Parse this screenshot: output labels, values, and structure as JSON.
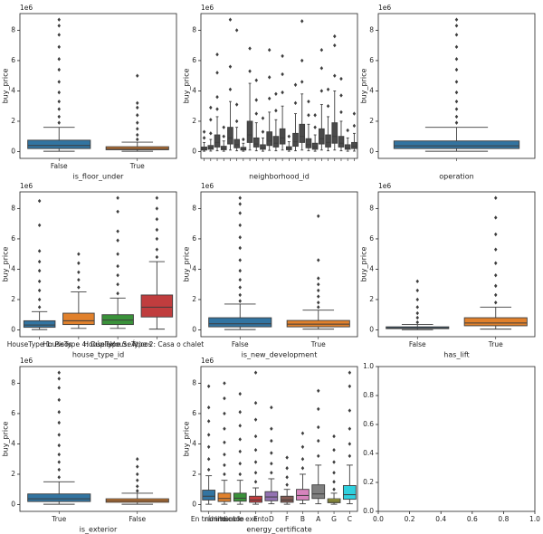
{
  "chart_data": [
    {
      "type": "box",
      "xlabel": "is_floor_under",
      "ylabel": "buy_price",
      "offset_text": "1e6",
      "ylim": [
        -0.45,
        9.1
      ],
      "yticks": [
        0,
        2,
        4,
        6,
        8
      ],
      "categories": [
        "False",
        "True"
      ],
      "colors": [
        "#3274a1",
        "#e1812c"
      ],
      "boxes": [
        {
          "low": 0.02,
          "q1": 0.2,
          "median": 0.4,
          "q3": 0.75,
          "high": 1.6,
          "fliers": [
            1.9,
            2.3,
            2.8,
            3.3,
            3.9,
            4.6,
            5.4,
            6.1,
            6.9,
            7.7,
            8.3,
            8.7
          ]
        },
        {
          "low": 0.02,
          "q1": 0.12,
          "median": 0.2,
          "q3": 0.32,
          "high": 0.62,
          "fliers": [
            0.8,
            1.1,
            1.5,
            1.9,
            2.4,
            2.9,
            3.2,
            5.0
          ]
        }
      ]
    },
    {
      "type": "box",
      "xlabel": "neighborhood_id",
      "ylabel": "buy_price",
      "offset_text": "1e6",
      "ylim": [
        -0.45,
        9.1
      ],
      "yticks": [
        0,
        2,
        4,
        6,
        8
      ],
      "categories": [
        null,
        null,
        null,
        null,
        null,
        null,
        null,
        null,
        null,
        null,
        null,
        null,
        null,
        null,
        null,
        null,
        null,
        null,
        null,
        null,
        null,
        null,
        null,
        null
      ],
      "color": "#4a4a4a",
      "boxes": [
        {
          "low": 0.02,
          "q1": 0.1,
          "median": 0.18,
          "q3": 0.3,
          "high": 0.6,
          "fliers": [
            0.9,
            1.3
          ]
        },
        {
          "low": 0.03,
          "q1": 0.15,
          "median": 0.25,
          "q3": 0.4,
          "high": 0.8,
          "fliers": [
            1.2,
            2.1,
            2.9
          ]
        },
        {
          "low": 0.05,
          "q1": 0.3,
          "median": 0.6,
          "q3": 1.1,
          "high": 2.3,
          "fliers": [
            2.8,
            3.6,
            5.2,
            6.4
          ]
        },
        {
          "low": 0.02,
          "q1": 0.12,
          "median": 0.2,
          "q3": 0.35,
          "high": 0.7,
          "fliers": [
            1.0,
            1.6
          ]
        },
        {
          "low": 0.1,
          "q1": 0.5,
          "median": 0.9,
          "q3": 1.6,
          "high": 3.3,
          "fliers": [
            4.1,
            5.6,
            8.7
          ]
        },
        {
          "low": 0.05,
          "q1": 0.25,
          "median": 0.45,
          "q3": 0.8,
          "high": 1.6,
          "fliers": [
            2.0,
            3.1,
            8.0
          ]
        },
        {
          "low": 0.02,
          "q1": 0.1,
          "median": 0.17,
          "q3": 0.28,
          "high": 0.55,
          "fliers": [
            0.8
          ]
        },
        {
          "low": 0.1,
          "q1": 0.6,
          "median": 1.1,
          "q3": 2.0,
          "high": 4.5,
          "fliers": [
            5.3,
            6.8
          ]
        },
        {
          "low": 0.05,
          "q1": 0.3,
          "median": 0.5,
          "q3": 0.9,
          "high": 1.9,
          "fliers": [
            2.5,
            3.4,
            4.7
          ]
        },
        {
          "low": 0.02,
          "q1": 0.15,
          "median": 0.25,
          "q3": 0.45,
          "high": 0.9,
          "fliers": [
            1.3,
            2.2
          ]
        },
        {
          "low": 0.08,
          "q1": 0.4,
          "median": 0.7,
          "q3": 1.3,
          "high": 2.6,
          "fliers": [
            3.5,
            4.9,
            6.7
          ]
        },
        {
          "low": 0.05,
          "q1": 0.3,
          "median": 0.55,
          "q3": 1.0,
          "high": 2.1,
          "fliers": [
            2.7,
            3.8
          ]
        },
        {
          "low": 0.1,
          "q1": 0.5,
          "median": 0.9,
          "q3": 1.5,
          "high": 3.0,
          "fliers": [
            3.9,
            5.1,
            6.3
          ]
        },
        {
          "low": 0.02,
          "q1": 0.12,
          "median": 0.2,
          "q3": 0.32,
          "high": 0.65,
          "fliers": [
            1.0
          ]
        },
        {
          "low": 0.05,
          "q1": 0.35,
          "median": 0.65,
          "q3": 1.2,
          "high": 2.5,
          "fliers": [
            3.2,
            4.4
          ]
        },
        {
          "low": 0.1,
          "q1": 0.6,
          "median": 1.0,
          "q3": 1.8,
          "high": 3.8,
          "fliers": [
            4.6,
            6.0,
            8.6
          ]
        },
        {
          "low": 0.05,
          "q1": 0.25,
          "median": 0.45,
          "q3": 0.85,
          "high": 1.8,
          "fliers": [
            2.4,
            3.3
          ]
        },
        {
          "low": 0.02,
          "q1": 0.15,
          "median": 0.3,
          "q3": 0.55,
          "high": 1.1,
          "fliers": [
            1.6,
            2.4
          ]
        },
        {
          "low": 0.1,
          "q1": 0.5,
          "median": 0.85,
          "q3": 1.5,
          "high": 3.1,
          "fliers": [
            4.0,
            5.5,
            6.7
          ]
        },
        {
          "low": 0.05,
          "q1": 0.3,
          "median": 0.6,
          "q3": 1.1,
          "high": 2.3,
          "fliers": [
            3.0,
            4.1
          ]
        },
        {
          "low": 0.1,
          "q1": 0.55,
          "median": 1.0,
          "q3": 1.9,
          "high": 4.0,
          "fliers": [
            5.0,
            7.0,
            7.6
          ]
        },
        {
          "low": 0.05,
          "q1": 0.3,
          "median": 0.55,
          "q3": 1.0,
          "high": 2.0,
          "fliers": [
            2.6,
            3.7,
            4.8
          ]
        },
        {
          "low": 0.02,
          "q1": 0.15,
          "median": 0.25,
          "q3": 0.45,
          "high": 0.9,
          "fliers": [
            1.4
          ]
        },
        {
          "low": 0.03,
          "q1": 0.2,
          "median": 0.35,
          "q3": 0.6,
          "high": 1.2,
          "fliers": [
            1.7,
            2.5
          ]
        }
      ]
    },
    {
      "type": "box",
      "xlabel": "operation",
      "ylabel": "buy_price",
      "offset_text": "1e6",
      "ylim": [
        -0.45,
        9.1
      ],
      "yticks": [
        0,
        2,
        4,
        6,
        8
      ],
      "categories": [
        null
      ],
      "colors": [
        "#3274a1"
      ],
      "boxes": [
        {
          "low": 0.02,
          "q1": 0.2,
          "median": 0.38,
          "q3": 0.7,
          "high": 1.6,
          "fliers": [
            1.9,
            2.3,
            2.8,
            3.3,
            3.9,
            4.6,
            5.4,
            6.1,
            6.9,
            7.7,
            8.3,
            8.7
          ]
        }
      ]
    },
    {
      "type": "box",
      "xlabel": "house_type_id",
      "ylabel": "buy_price",
      "offset_text": "1e6",
      "ylim": [
        -0.45,
        9.1
      ],
      "yticks": [
        0,
        2,
        4,
        6,
        8
      ],
      "categories": [
        "HouseType 1: Pisos",
        "HouseType 4: Dúplex",
        "HouseType 5: Áticos",
        "HouseType 2: Casa o chalet"
      ],
      "colors": [
        "#3274a1",
        "#e1812c",
        "#3a923a",
        "#c03d3e"
      ],
      "boxes": [
        {
          "low": 0.02,
          "q1": 0.17,
          "median": 0.32,
          "q3": 0.6,
          "high": 1.2,
          "fliers": [
            1.5,
            2.0,
            2.6,
            3.2,
            3.9,
            4.5,
            5.2,
            6.9,
            8.5
          ]
        },
        {
          "low": 0.1,
          "q1": 0.35,
          "median": 0.6,
          "q3": 1.1,
          "high": 2.5,
          "fliers": [
            2.8,
            3.3,
            3.8,
            4.4,
            5.0
          ]
        },
        {
          "low": 0.1,
          "q1": 0.35,
          "median": 0.65,
          "q3": 1.0,
          "high": 2.1,
          "fliers": [
            2.4,
            3.0,
            3.6,
            4.2,
            5.0,
            5.9,
            6.5,
            7.8,
            8.7
          ]
        },
        {
          "low": 0.05,
          "q1": 0.85,
          "median": 1.5,
          "q3": 2.3,
          "high": 4.5,
          "fliers": [
            4.8,
            5.3,
            6.0,
            6.6,
            7.3,
            8.0,
            8.7
          ]
        }
      ]
    },
    {
      "type": "box",
      "xlabel": "is_new_development",
      "ylabel": "buy_price",
      "offset_text": "1e6",
      "ylim": [
        -0.45,
        9.1
      ],
      "yticks": [
        0,
        2,
        4,
        6,
        8
      ],
      "categories": [
        "False",
        "True"
      ],
      "colors": [
        "#3274a1",
        "#e1812c"
      ],
      "boxes": [
        {
          "low": 0.02,
          "q1": 0.2,
          "median": 0.4,
          "q3": 0.8,
          "high": 1.7,
          "fliers": [
            1.9,
            2.3,
            2.8,
            3.3,
            3.9,
            4.6,
            5.4,
            6.1,
            6.9,
            7.7,
            8.3,
            8.7
          ]
        },
        {
          "low": 0.05,
          "q1": 0.2,
          "median": 0.38,
          "q3": 0.62,
          "high": 1.3,
          "fliers": [
            1.5,
            1.8,
            2.2,
            2.6,
            3.0,
            3.4,
            4.6,
            7.5
          ]
        }
      ]
    },
    {
      "type": "box",
      "xlabel": "has_lift",
      "ylabel": "buy_price",
      "offset_text": "1e6",
      "ylim": [
        -0.45,
        9.1
      ],
      "yticks": [
        0,
        2,
        4,
        6,
        8
      ],
      "categories": [
        "False",
        "True"
      ],
      "colors": [
        "#3274a1",
        "#e1812c"
      ],
      "boxes": [
        {
          "low": 0.01,
          "q1": 0.08,
          "median": 0.13,
          "q3": 0.2,
          "high": 0.35,
          "fliers": [
            0.5,
            0.8,
            1.1,
            1.5,
            2.0,
            2.6,
            3.2
          ]
        },
        {
          "low": 0.05,
          "q1": 0.27,
          "median": 0.45,
          "q3": 0.8,
          "high": 1.5,
          "fliers": [
            1.8,
            2.3,
            2.9,
            3.6,
            4.4,
            5.3,
            6.3,
            7.4,
            8.7
          ]
        }
      ]
    },
    {
      "type": "box",
      "xlabel": "is_exterior",
      "ylabel": "buy_price",
      "offset_text": "1e6",
      "ylim": [
        -0.45,
        9.1
      ],
      "yticks": [
        0,
        2,
        4,
        6,
        8
      ],
      "categories": [
        "True",
        "False"
      ],
      "colors": [
        "#3274a1",
        "#e1812c"
      ],
      "boxes": [
        {
          "low": 0.02,
          "q1": 0.2,
          "median": 0.38,
          "q3": 0.7,
          "high": 1.5,
          "fliers": [
            1.8,
            2.3,
            2.8,
            3.3,
            3.9,
            4.6,
            5.4,
            6.1,
            6.9,
            7.7,
            8.3,
            8.7
          ]
        },
        {
          "low": 0.02,
          "q1": 0.15,
          "median": 0.25,
          "q3": 0.38,
          "high": 0.75,
          "fliers": [
            0.9,
            1.2,
            1.6,
            2.0,
            2.5,
            3.0
          ]
        }
      ]
    },
    {
      "type": "box",
      "xlabel": "energy_certificate",
      "ylabel": "buy_price",
      "offset_text": "1e6",
      "ylim": [
        -0.45,
        9.1
      ],
      "yticks": [
        0,
        2,
        4,
        6,
        8
      ],
      "categories": [
        "En trámite",
        "no indicado",
        "inmueble exento",
        "E",
        "D",
        "F",
        "B",
        "A",
        "G",
        "C"
      ],
      "colors": [
        "#3274a1",
        "#e1812c",
        "#3a923a",
        "#c03d3e",
        "#9372b2",
        "#845b53",
        "#d684bd",
        "#7f7f7f",
        "#a9aa35",
        "#2ed0de"
      ],
      "boxes": [
        {
          "low": 0.02,
          "q1": 0.3,
          "median": 0.55,
          "q3": 0.95,
          "high": 1.9,
          "fliers": [
            2.3,
            3.0,
            3.8,
            4.6,
            5.5,
            6.4,
            7.8
          ]
        },
        {
          "low": 0.02,
          "q1": 0.2,
          "median": 0.4,
          "q3": 0.75,
          "high": 1.6,
          "fliers": [
            2.0,
            2.6,
            3.3,
            4.1,
            5.0,
            6.0,
            7.0,
            8.0
          ]
        },
        {
          "low": 0.02,
          "q1": 0.22,
          "median": 0.42,
          "q3": 0.75,
          "high": 1.6,
          "fliers": [
            2.0,
            2.7,
            3.5,
            4.3,
            5.2,
            6.1,
            7.3
          ]
        },
        {
          "low": 0.02,
          "q1": 0.15,
          "median": 0.3,
          "q3": 0.55,
          "high": 1.1,
          "fliers": [
            1.5,
            2.1,
            2.8,
            3.6,
            4.5,
            5.6,
            6.7,
            8.7
          ]
        },
        {
          "low": 0.05,
          "q1": 0.25,
          "median": 0.5,
          "q3": 0.85,
          "high": 1.7,
          "fliers": [
            2.1,
            2.7,
            3.4,
            4.2,
            5.0,
            6.4
          ]
        },
        {
          "low": 0.02,
          "q1": 0.15,
          "median": 0.3,
          "q3": 0.55,
          "high": 1.0,
          "fliers": [
            1.3,
            1.8,
            2.4,
            3.1
          ]
        },
        {
          "low": 0.05,
          "q1": 0.3,
          "median": 0.6,
          "q3": 1.0,
          "high": 2.0,
          "fliers": [
            2.4,
            3.0,
            3.8,
            4.7
          ]
        },
        {
          "low": 0.05,
          "q1": 0.4,
          "median": 0.7,
          "q3": 1.3,
          "high": 2.6,
          "fliers": [
            3.2,
            4.2,
            5.1,
            6.3,
            7.5
          ]
        },
        {
          "low": 0.02,
          "q1": 0.12,
          "median": 0.22,
          "q3": 0.38,
          "high": 0.75,
          "fliers": [
            1.0,
            1.5,
            2.1,
            2.8,
            3.6,
            4.5
          ]
        },
        {
          "low": 0.05,
          "q1": 0.35,
          "median": 0.65,
          "q3": 1.25,
          "high": 2.6,
          "fliers": [
            3.2,
            4.0,
            5.0,
            6.2,
            7.8,
            8.7
          ]
        }
      ]
    },
    {
      "type": "empty",
      "xlim": [
        0,
        1
      ],
      "ylim": [
        0,
        1
      ],
      "xticks": [
        {
          "value": 0,
          "label": "0.0"
        },
        {
          "value": 0.2,
          "label": "0.2"
        },
        {
          "value": 0.4,
          "label": "0.4"
        },
        {
          "value": 0.6,
          "label": "0.6"
        },
        {
          "value": 0.8,
          "label": "0.8"
        },
        {
          "value": 1,
          "label": "1.0"
        }
      ],
      "yticks": [
        {
          "value": 0,
          "label": "0.0"
        },
        {
          "value": 0.2,
          "label": "0.2"
        },
        {
          "value": 0.4,
          "label": "0.4"
        },
        {
          "value": 0.6,
          "label": "0.6"
        },
        {
          "value": 0.8,
          "label": "0.8"
        },
        {
          "value": 1,
          "label": "1.0"
        }
      ]
    }
  ]
}
